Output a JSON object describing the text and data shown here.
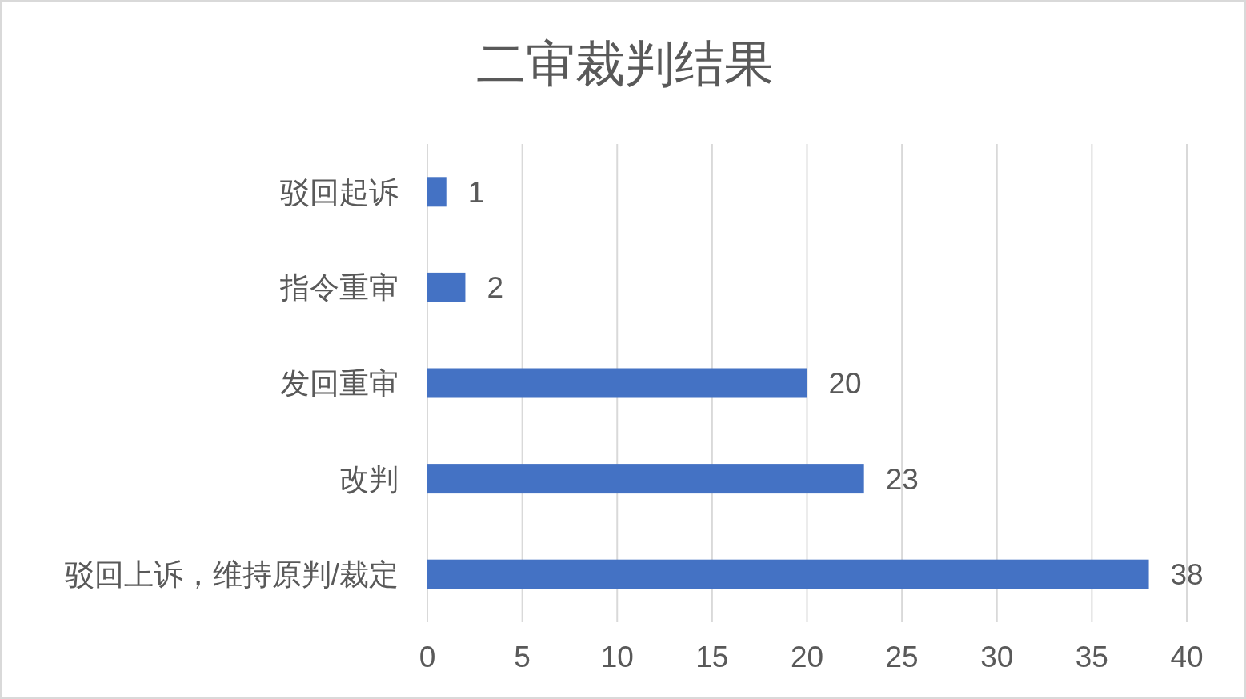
{
  "chart_data": {
    "type": "bar",
    "title": "二审裁判结果",
    "orientation": "horizontal",
    "categories": [
      "驳回起诉",
      "指令重审",
      "发回重审",
      "改判",
      "驳回上诉，维持原判/裁定"
    ],
    "values": [
      1,
      2,
      20,
      23,
      38
    ],
    "color": "#4472c4",
    "xlim": [
      0,
      40
    ],
    "xticks": [
      0,
      5,
      10,
      15,
      20,
      25,
      30,
      35,
      40
    ],
    "grid": "x",
    "data_labels": true
  }
}
